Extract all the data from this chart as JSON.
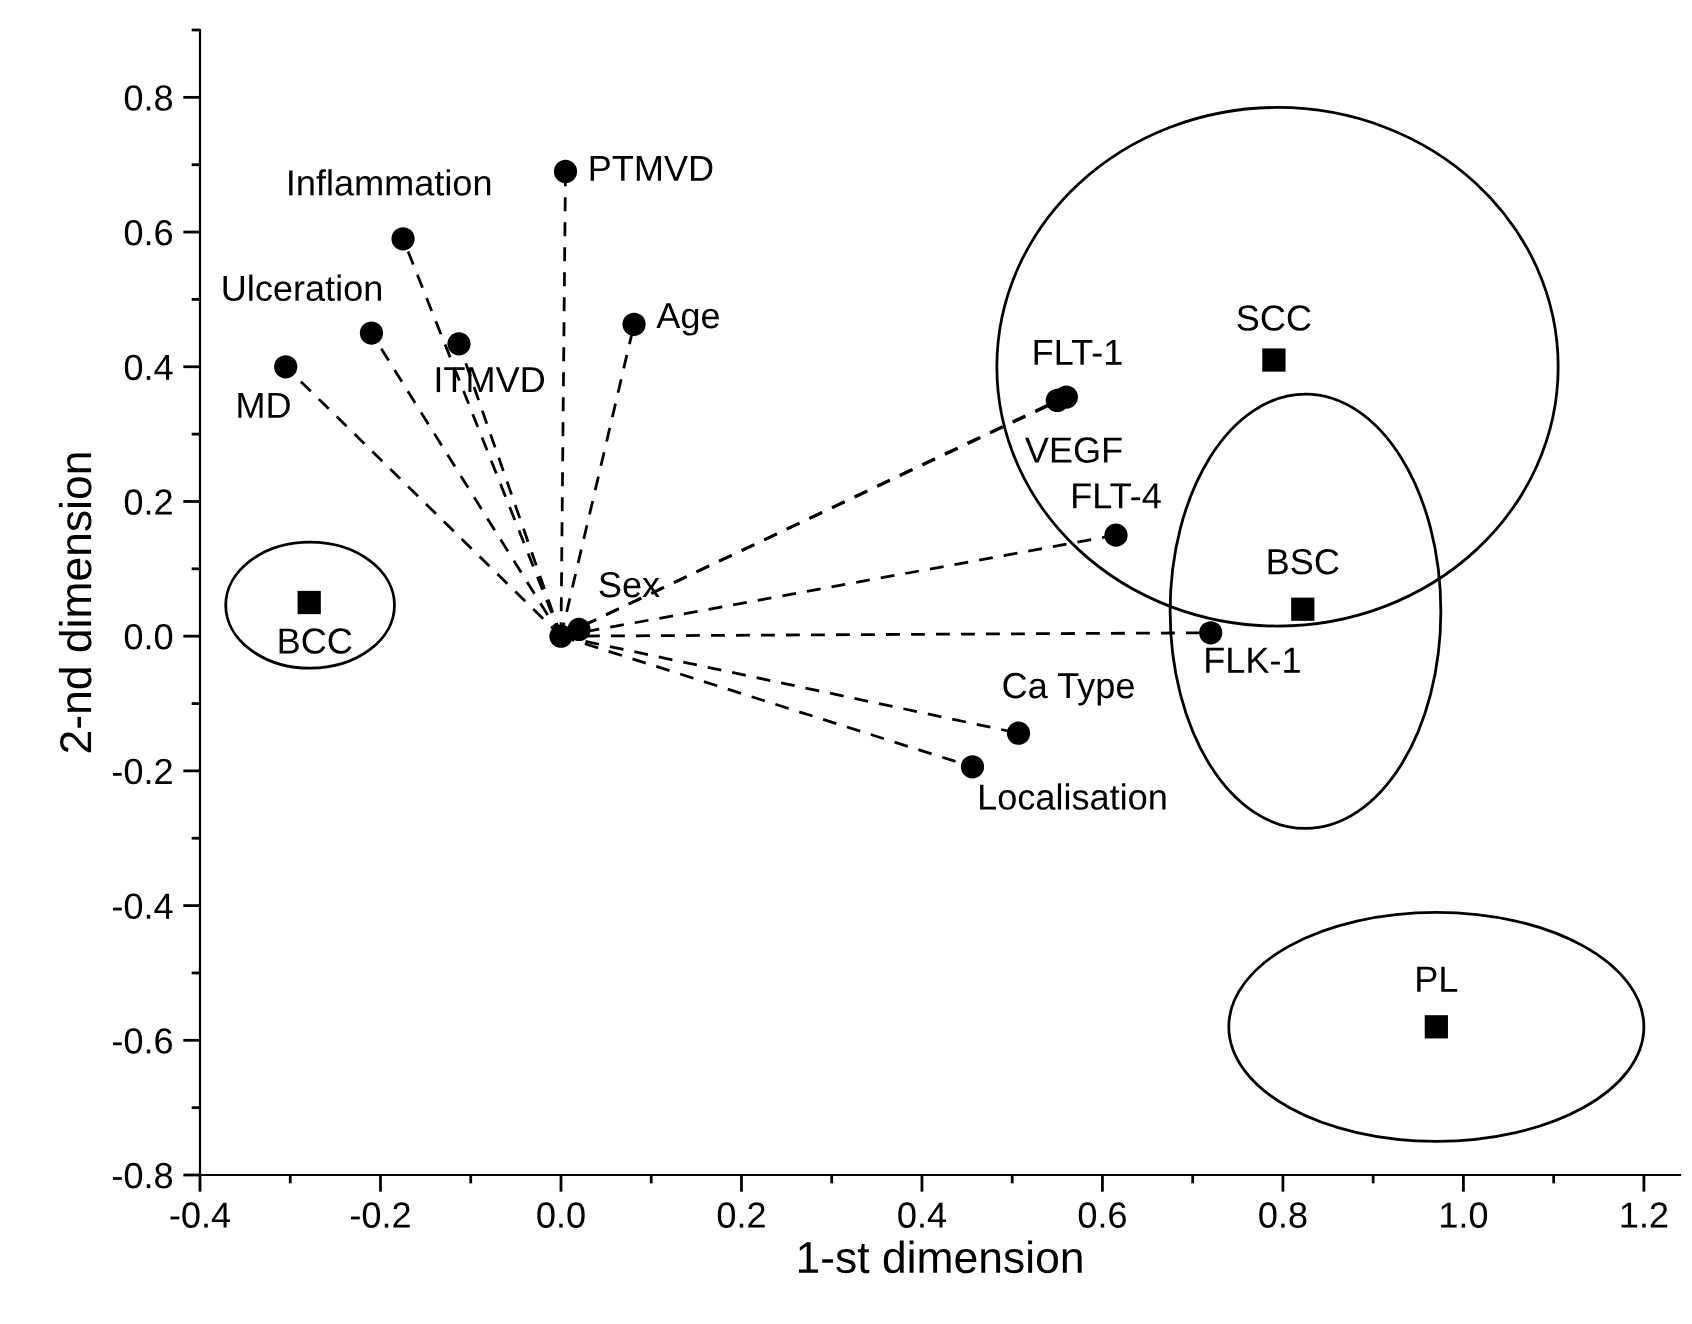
{
  "chart_data": {
    "type": "scatter",
    "xlabel": "1-st dimension",
    "ylabel": "2-nd dimension",
    "xlim": [
      -0.4,
      1.24
    ],
    "ylim": [
      -0.8,
      0.9
    ],
    "xticks": [
      {
        "value": -0.4,
        "label": "-0.4"
      },
      {
        "value": -0.2,
        "label": "-0.2"
      },
      {
        "value": 0.0,
        "label": "0.0"
      },
      {
        "value": 0.2,
        "label": "0.2"
      },
      {
        "value": 0.4,
        "label": "0.4"
      },
      {
        "value": 0.6,
        "label": "0.6"
      },
      {
        "value": 0.8,
        "label": "0.8"
      },
      {
        "value": 1.0,
        "label": "1.0"
      },
      {
        "value": 1.2,
        "label": "1.2"
      }
    ],
    "yticks": [
      {
        "value": -0.8,
        "label": "-0.8"
      },
      {
        "value": -0.6,
        "label": "-0.6"
      },
      {
        "value": -0.4,
        "label": "-0.4"
      },
      {
        "value": -0.2,
        "label": "-0.2"
      },
      {
        "value": 0.0,
        "label": "0.0"
      },
      {
        "value": 0.2,
        "label": "0.2"
      },
      {
        "value": 0.4,
        "label": "0.4"
      },
      {
        "value": 0.6,
        "label": "0.6"
      },
      {
        "value": 0.8,
        "label": "0.8"
      }
    ],
    "grid": false,
    "series": [
      {
        "type": "line",
        "line_style": "dashed",
        "marker": "none",
        "color": "#000000",
        "x": [
          0,
          0.005
        ],
        "values": [
          0,
          0.69
        ]
      },
      {
        "type": "line",
        "line_style": "dashed",
        "marker": "none",
        "color": "#000000",
        "x": [
          0,
          -0.175
        ],
        "values": [
          0,
          0.59
        ]
      },
      {
        "type": "line",
        "line_style": "dashed",
        "marker": "none",
        "color": "#000000",
        "x": [
          0,
          -0.21
        ],
        "values": [
          0,
          0.45
        ]
      },
      {
        "type": "line",
        "line_style": "dashed",
        "marker": "none",
        "color": "#000000",
        "x": [
          0,
          -0.305
        ],
        "values": [
          0,
          0.4
        ]
      },
      {
        "type": "line",
        "line_style": "dashed",
        "marker": "none",
        "color": "#000000",
        "x": [
          0,
          -0.113
        ],
        "values": [
          0,
          0.434
        ]
      },
      {
        "type": "line",
        "line_style": "dashed",
        "marker": "none",
        "color": "#000000",
        "x": [
          0,
          0.081
        ],
        "values": [
          0,
          0.463
        ]
      },
      {
        "type": "line",
        "line_style": "dashed",
        "marker": "none",
        "color": "#000000",
        "x": [
          0,
          0.55
        ],
        "values": [
          0,
          0.35
        ]
      },
      {
        "type": "line",
        "line_style": "dashed",
        "marker": "none",
        "color": "#000000",
        "x": [
          0,
          0.56
        ],
        "values": [
          0,
          0.355
        ]
      },
      {
        "type": "line",
        "line_style": "dashed",
        "marker": "none",
        "color": "#000000",
        "x": [
          0,
          0.615
        ],
        "values": [
          0,
          0.15
        ]
      },
      {
        "type": "line",
        "line_style": "dashed",
        "marker": "none",
        "color": "#000000",
        "x": [
          0,
          0.72
        ],
        "values": [
          0,
          0.005
        ]
      },
      {
        "type": "line",
        "line_style": "dashed",
        "marker": "none",
        "color": "#000000",
        "x": [
          0,
          0.507
        ],
        "values": [
          0,
          -0.144
        ]
      },
      {
        "type": "line",
        "line_style": "dashed",
        "marker": "none",
        "color": "#000000",
        "x": [
          0,
          0.456
        ],
        "values": [
          0,
          -0.194
        ]
      },
      {
        "marker": "circle",
        "color": "#000000",
        "x": [
          0,
          0.02,
          0.005,
          -0.175,
          -0.21,
          -0.305,
          -0.113,
          0.081,
          0.55,
          0.56,
          0.615,
          0.72,
          0.507,
          0.456
        ],
        "values": [
          0,
          0.01,
          0.69,
          0.59,
          0.45,
          0.4,
          0.434,
          0.463,
          0.35,
          0.355,
          0.15,
          0.005,
          -0.144,
          -0.194
        ]
      },
      {
        "marker": "square",
        "color": "#000000",
        "x": [
          0.79,
          0.822,
          -0.279,
          0.97
        ],
        "values": [
          0.41,
          0.04,
          0.05,
          -0.58
        ]
      }
    ],
    "annotations": [
      {
        "text": "PTMVD",
        "x": 0.005,
        "y": 0.69
      },
      {
        "text": "Inflammation",
        "x": -0.175,
        "y": 0.59
      },
      {
        "text": "Ulceration",
        "x": -0.21,
        "y": 0.45
      },
      {
        "text": "MD",
        "x": -0.305,
        "y": 0.4
      },
      {
        "text": "ITMVD",
        "x": -0.113,
        "y": 0.434
      },
      {
        "text": "Age",
        "x": 0.081,
        "y": 0.463
      },
      {
        "text": "Sex",
        "x": 0.02,
        "y": 0.01
      },
      {
        "text": "FLT-1",
        "x": 0.56,
        "y": 0.355
      },
      {
        "text": "VEGF",
        "x": 0.55,
        "y": 0.35
      },
      {
        "text": "FLT-4",
        "x": 0.615,
        "y": 0.15
      },
      {
        "text": "FLK-1",
        "x": 0.72,
        "y": 0.005
      },
      {
        "text": "Ca Type",
        "x": 0.507,
        "y": -0.144
      },
      {
        "text": "Localisation",
        "x": 0.456,
        "y": -0.194
      },
      {
        "text": "SCC",
        "x": 0.79,
        "y": 0.41
      },
      {
        "text": "BSC",
        "x": 0.822,
        "y": 0.04
      },
      {
        "text": "BCC",
        "x": -0.279,
        "y": 0.05
      },
      {
        "text": "PL",
        "x": 0.97,
        "y": -0.58
      }
    ]
  }
}
